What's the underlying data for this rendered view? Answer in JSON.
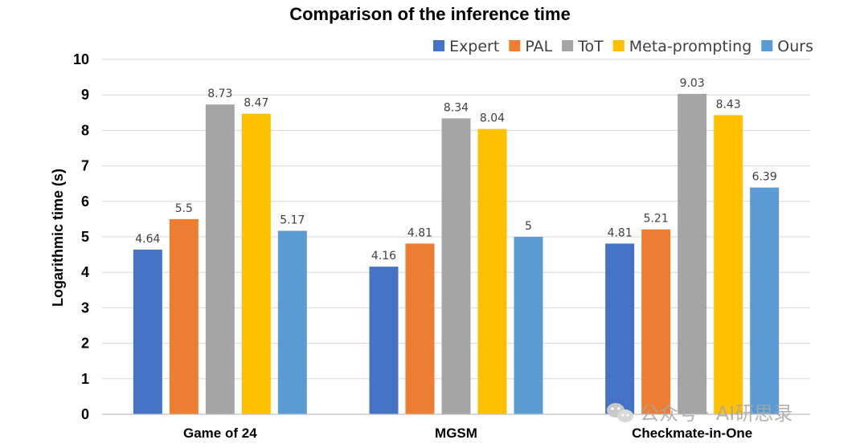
{
  "chart_data": {
    "type": "bar",
    "title": "Comparison of the inference time",
    "ylabel": "Logarithmic time (s)",
    "xlabel": "",
    "ylim": [
      0,
      10
    ],
    "yticks": [
      0,
      1,
      2,
      3,
      4,
      5,
      6,
      7,
      8,
      9,
      10
    ],
    "grid": true,
    "legend_position": "top-right",
    "categories": [
      "Game of 24",
      "MGSM",
      "Checkmate-in-One"
    ],
    "series": [
      {
        "name": "Expert",
        "color": "#4472C4",
        "values": [
          4.64,
          4.16,
          4.81
        ],
        "labels": [
          "4.64",
          "4.16",
          "4.81"
        ]
      },
      {
        "name": "PAL",
        "color": "#ED7D31",
        "values": [
          5.5,
          4.81,
          5.21
        ],
        "labels": [
          "5.5",
          "4.81",
          "5.21"
        ]
      },
      {
        "name": "ToT",
        "color": "#A5A5A5",
        "values": [
          8.73,
          8.34,
          9.03
        ],
        "labels": [
          "8.73",
          "8.34",
          "9.03"
        ]
      },
      {
        "name": "Meta-prompting",
        "color": "#FFC000",
        "values": [
          8.47,
          8.04,
          8.43
        ],
        "labels": [
          "8.47",
          "8.04",
          "8.43"
        ]
      },
      {
        "name": "Ours",
        "color": "#5B9BD5",
        "values": [
          5.17,
          5.0,
          6.39
        ],
        "labels": [
          "5.17",
          "5",
          "6.39"
        ]
      }
    ]
  },
  "watermark": {
    "text": "公众号 · AI研思录",
    "icon": "wechat-icon"
  }
}
